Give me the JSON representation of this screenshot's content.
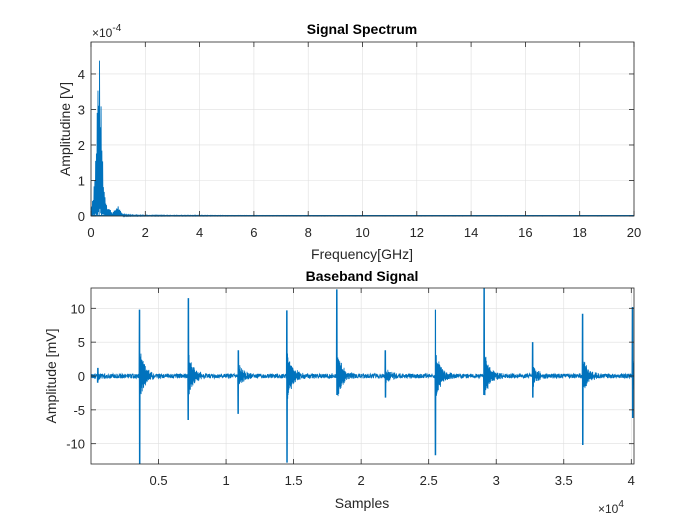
{
  "chart_data": [
    {
      "type": "line",
      "title": "Signal Spectrum",
      "xlabel": "Frequency[GHz]",
      "ylabel": "Amplitudine [V]",
      "xlim": [
        0,
        20
      ],
      "ylim": [
        0,
        0.00049
      ],
      "x_ticks": [
        0,
        2,
        4,
        6,
        8,
        10,
        12,
        14,
        16,
        18,
        20
      ],
      "x_tick_labels": [
        "0",
        "2",
        "4",
        "6",
        "8",
        "10",
        "12",
        "14",
        "16",
        "18",
        "20"
      ],
      "y_ticks": [
        0,
        0.0001,
        0.0002,
        0.0003,
        0.0004
      ],
      "y_tick_labels": [
        "0",
        "1",
        "2",
        "3",
        "4"
      ],
      "y_exponent_label": "×10",
      "y_exponent_power": "-4",
      "grid": true,
      "color": "#0072BD",
      "series": [
        {
          "x": [
            0,
            0.05,
            0.1,
            0.15,
            0.2,
            0.25,
            0.3,
            0.35,
            0.4,
            0.45,
            0.5,
            0.6,
            0.7,
            0.8,
            0.9,
            0.95,
            1.0,
            1.05,
            1.1,
            1.2,
            1.5,
            2,
            3,
            4,
            5,
            6,
            8,
            10,
            12,
            14,
            16,
            18,
            20
          ],
          "y": [
            3e-05,
            5e-05,
            8e-05,
            0.00015,
            0.00022,
            0.00042,
            0.00048,
            0.00037,
            0.00024,
            0.00013,
            7e-05,
            3e-05,
            2e-05,
            1e-05,
            2e-05,
            2.8e-05,
            3e-05,
            2e-05,
            1.2e-05,
            5e-06,
            3e-06,
            2.5e-06,
            2e-06,
            2e-06,
            1.5e-06,
            1.5e-06,
            1.2e-06,
            1e-06,
            1e-06,
            1e-06,
            1e-06,
            1e-06,
            1e-06
          ]
        }
      ]
    },
    {
      "type": "line",
      "title": "Baseband Signal",
      "xlabel": "Samples",
      "ylabel": "Amplitude [mV]",
      "xlim": [
        0,
        40200
      ],
      "ylim": [
        -13,
        13
      ],
      "x_ticks": [
        5000,
        10000,
        15000,
        20000,
        25000,
        30000,
        35000,
        40000
      ],
      "x_tick_labels": [
        "0.5",
        "1",
        "1.5",
        "2",
        "2.5",
        "3",
        "3.5",
        "4"
      ],
      "y_ticks": [
        -10,
        -5,
        0,
        5,
        10
      ],
      "y_tick_labels": [
        "-10",
        "-5",
        "0",
        "5",
        "10"
      ],
      "x_exponent_label": "×10",
      "x_exponent_power": "4",
      "grid": true,
      "color": "#0072BD",
      "noise_level": 0.35,
      "pulses": [
        {
          "x": 500,
          "max": 1.2,
          "min": -1.0
        },
        {
          "x": 3600,
          "max": 9.8,
          "min": -13.0
        },
        {
          "x": 7200,
          "max": 11.5,
          "min": -6.5
        },
        {
          "x": 10900,
          "max": 3.8,
          "min": -5.6
        },
        {
          "x": 14500,
          "max": 9.7,
          "min": -12.8
        },
        {
          "x": 18200,
          "max": 12.8,
          "min": -2.8
        },
        {
          "x": 21800,
          "max": 3.8,
          "min": -3.2
        },
        {
          "x": 25500,
          "max": 9.8,
          "min": -11.7
        },
        {
          "x": 29100,
          "max": 13.0,
          "min": -2.8
        },
        {
          "x": 32700,
          "max": 5.0,
          "min": -3.2
        },
        {
          "x": 36400,
          "max": 9.2,
          "min": -10.2
        },
        {
          "x": 40100,
          "max": 10.2,
          "min": -6.2
        }
      ]
    }
  ]
}
